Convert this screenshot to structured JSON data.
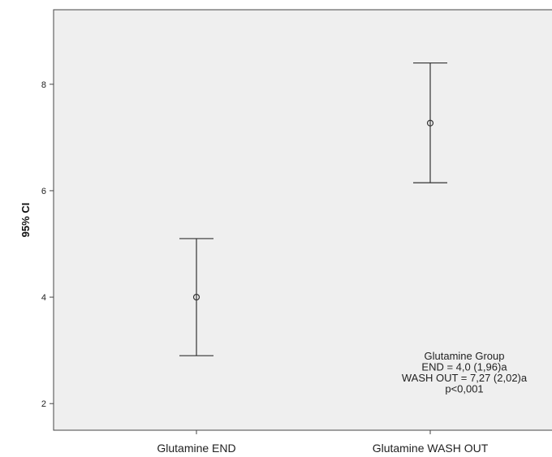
{
  "chart_data": {
    "type": "errorbar",
    "ylabel": "95% CI",
    "xlabel": "",
    "ylim": [
      1.5,
      9.4
    ],
    "yticks": [
      2,
      4,
      6,
      8
    ],
    "categories": [
      "Glutamine END",
      "Glutamine WASH OUT"
    ],
    "series": [
      {
        "means": [
          4.0,
          7.27
        ],
        "lower": [
          2.9,
          6.15
        ],
        "upper": [
          5.1,
          8.4
        ]
      }
    ],
    "annotation": [
      "Glutamine Group",
      "END = 4,0 (1,96)a",
      "WASH OUT = 7,27 (2,02)a",
      "p<0,001"
    ],
    "colors": {
      "plot_background": "#efefef",
      "marks": "#333333"
    }
  }
}
